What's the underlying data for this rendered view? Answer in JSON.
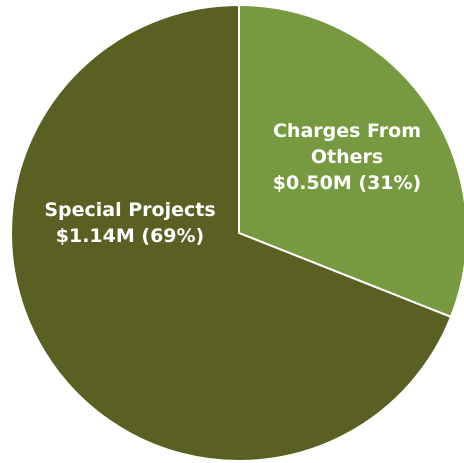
{
  "chart_data": {
    "type": "pie",
    "title": "",
    "slices": [
      {
        "category": "Charges From Others",
        "value_label": "$0.50M (31%)",
        "value": 0.5,
        "percent": 31,
        "color": "#77993f",
        "label_lines": [
          "Charges From",
          "Others",
          "$0.50M (31%)"
        ]
      },
      {
        "category": "Special Projects",
        "value_label": "$1.14M (69%)",
        "value": 1.14,
        "percent": 69,
        "color": "#5a5f22",
        "label_lines": [
          "Special Projects",
          "$1.14M (69%)"
        ]
      }
    ],
    "start_angle_deg": 0,
    "direction": "clockwise",
    "border_color": "#ffffff"
  }
}
